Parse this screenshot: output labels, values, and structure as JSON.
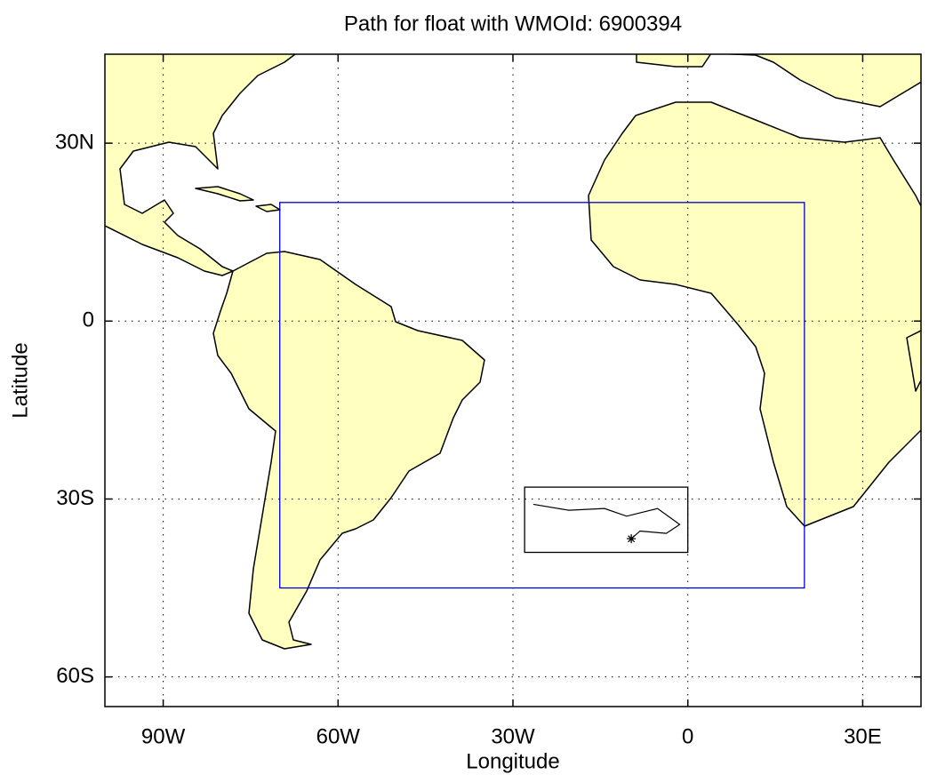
{
  "chart_data": {
    "type": "map",
    "title": "Path for float with WMOId: 6900394",
    "xlabel": "Longitude",
    "ylabel": "Latitude",
    "xlim": [
      -100,
      40
    ],
    "ylim": [
      -65,
      45
    ],
    "xticks": [
      {
        "value": -90,
        "label": "90W"
      },
      {
        "value": -60,
        "label": "60W"
      },
      {
        "value": -30,
        "label": "30W"
      },
      0,
      {
        "value": 30,
        "label": "30E"
      }
    ],
    "yticks": [
      {
        "value": 30,
        "label": "30N"
      },
      0,
      {
        "value": -30,
        "label": "30S"
      },
      {
        "value": -60,
        "label": "60S"
      }
    ],
    "grid": true,
    "land_color": "#ffffc0",
    "region_box": {
      "color": "#0000cc",
      "lon": [
        -70,
        20
      ],
      "lat": [
        -45,
        20
      ]
    },
    "inset_box": {
      "color": "#000000",
      "lon": [
        -28,
        0
      ],
      "lat": [
        -39,
        -28
      ]
    },
    "track": {
      "color": "#000000",
      "lon": [
        -26.5,
        -20.4,
        -14.3,
        -10.5,
        -5.2,
        -1.4,
        -3.7,
        -8.2,
        -9.7
      ],
      "lat": [
        -30.9,
        -31.9,
        -31.6,
        -32.9,
        -31.6,
        -34.3,
        -35.8,
        -35.4,
        -36.7
      ]
    }
  }
}
